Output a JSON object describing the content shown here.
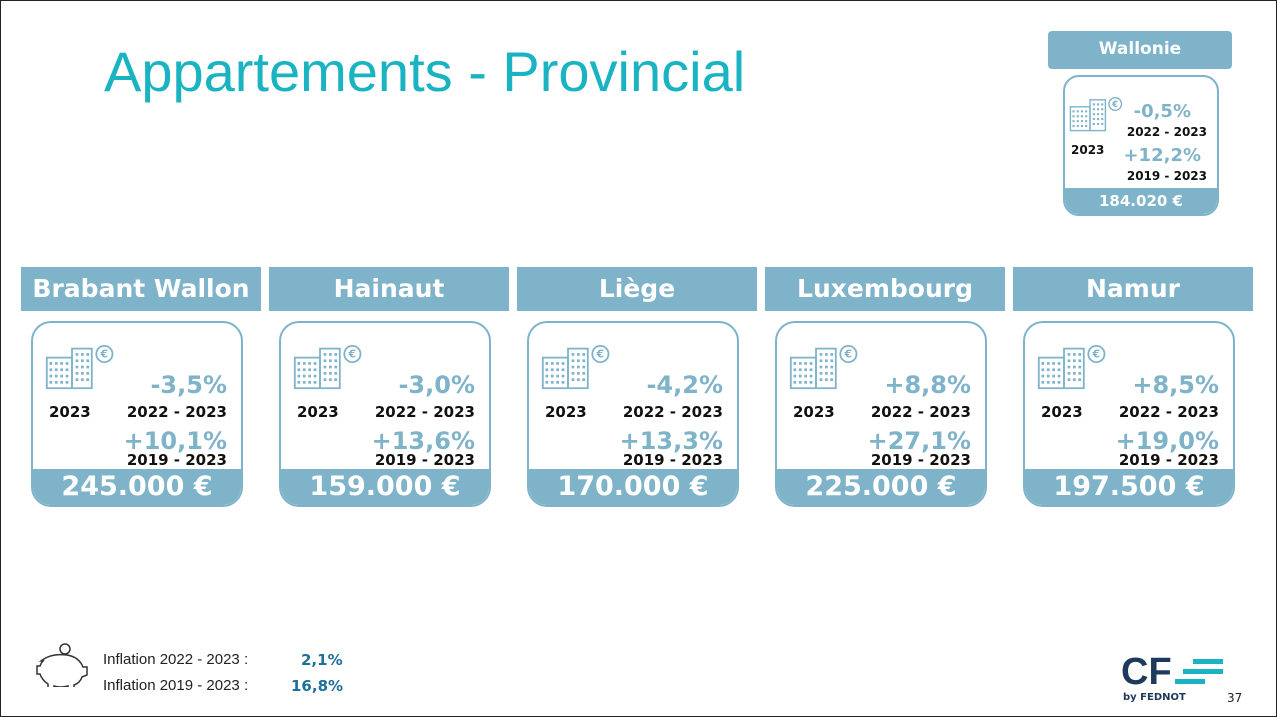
{
  "title": "Appartements - Provincial",
  "wallonie": {
    "name": "Wallonie",
    "year": "2023",
    "change1": "-0,5%",
    "period1": "2022 - 2023",
    "change2": "+12,2%",
    "period2": "2019 - 2023",
    "price": "184.020 €"
  },
  "provinces": [
    {
      "name": "Brabant Wallon",
      "year": "2023",
      "change1": "-3,5%",
      "period1": "2022 - 2023",
      "change2": "+10,1%",
      "period2": "2019 - 2023",
      "price": "245.000 €"
    },
    {
      "name": "Hainaut",
      "year": "2023",
      "change1": "-3,0%",
      "period1": "2022 - 2023",
      "change2": "+13,6%",
      "period2": "2019 - 2023",
      "price": "159.000 €"
    },
    {
      "name": "Liège",
      "year": "2023",
      "change1": "-4,2%",
      "period1": "2022 - 2023",
      "change2": "+13,3%",
      "period2": "2019 - 2023",
      "price": "170.000 €"
    },
    {
      "name": "Luxembourg",
      "year": "2023",
      "change1": "+8,8%",
      "period1": "2022 - 2023",
      "change2": "+27,1%",
      "period2": "2019 - 2023",
      "price": "225.000 €"
    },
    {
      "name": "Namur",
      "year": "2023",
      "change1": "+8,5%",
      "period1": "2022 - 2023",
      "change2": "+19,0%",
      "period2": "2019 - 2023",
      "price": "197.500 €"
    }
  ],
  "inflation": [
    {
      "label": "Inflation 2022 - 2023 :",
      "value": "2,1%"
    },
    {
      "label": "Inflation 2019 - 2023 :",
      "value": "16,8%"
    }
  ],
  "logo": {
    "mark": "CF",
    "text": "by FEDNOT"
  },
  "page_number": "37"
}
